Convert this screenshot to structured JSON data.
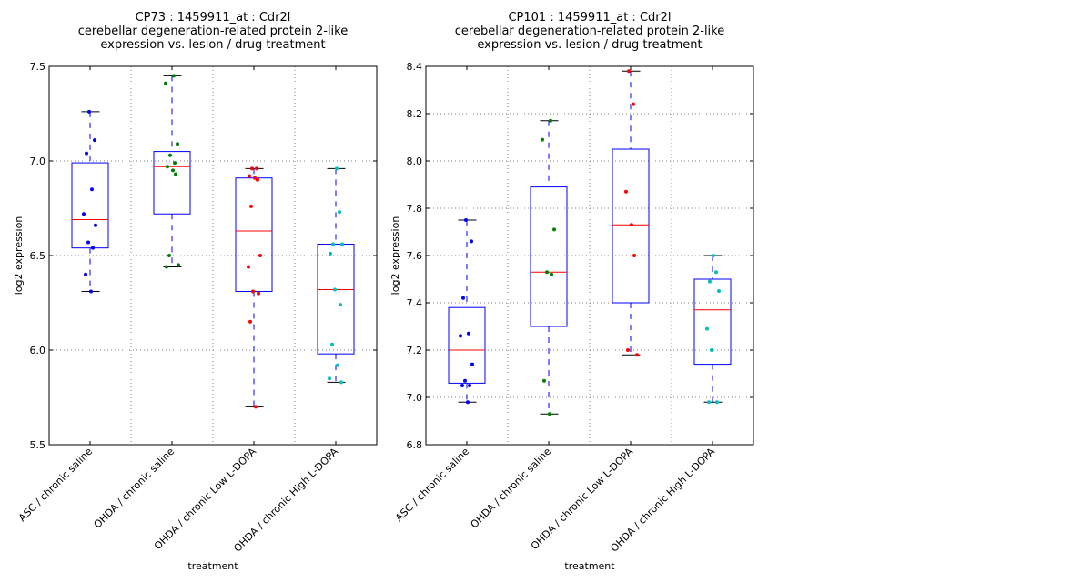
{
  "chart_data": [
    {
      "type": "box",
      "title_lines": [
        "CP73 : 1459911_at : Cdr2l",
        "cerebellar degeneration-related protein 2-like",
        "expression vs. lesion / drug treatment"
      ],
      "xlabel": "treatment",
      "ylabel": "log2 expression",
      "ylim": [
        5.5,
        7.5
      ],
      "yticks": [
        5.5,
        6.0,
        6.5,
        7.0,
        7.5
      ],
      "ytick_labels": [
        "5.5",
        "6.0",
        "6.5",
        "7.0",
        "7.5"
      ],
      "grid": true,
      "categories": [
        "ASC / chronic saline",
        "OHDA / chronic saline",
        "OHDA / chronic Low L-DOPA",
        "OHDA / chronic High L-DOPA"
      ],
      "series": [
        {
          "name": "ASC / chronic saline",
          "color": "#0000ff",
          "whisker_low": 6.31,
          "q1": 6.54,
          "median": 6.69,
          "q3": 6.99,
          "whisker_high": 7.26,
          "points": [
            7.26,
            7.11,
            7.04,
            6.85,
            6.72,
            6.66,
            6.57,
            6.54,
            6.4,
            6.31
          ]
        },
        {
          "name": "OHDA / chronic saline",
          "color": "#008000",
          "whisker_low": 6.44,
          "q1": 6.72,
          "median": 6.97,
          "q3": 7.05,
          "whisker_high": 7.45,
          "points": [
            7.45,
            7.41,
            7.09,
            7.03,
            6.99,
            6.97,
            6.95,
            6.93,
            6.5,
            6.45,
            6.44
          ]
        },
        {
          "name": "OHDA / chronic Low L-DOPA",
          "color": "#ff0000",
          "whisker_low": 5.7,
          "q1": 6.31,
          "median": 6.63,
          "q3": 6.91,
          "whisker_high": 6.96,
          "points": [
            6.96,
            6.96,
            6.92,
            6.91,
            6.9,
            6.76,
            6.5,
            6.44,
            6.31,
            6.3,
            6.15,
            5.7
          ]
        },
        {
          "name": "OHDA / chronic High L-DOPA",
          "color": "#00bfbf",
          "whisker_low": 5.83,
          "q1": 5.98,
          "median": 6.32,
          "q3": 6.56,
          "whisker_high": 6.96,
          "points": [
            6.96,
            6.73,
            6.56,
            6.56,
            6.51,
            6.32,
            6.24,
            6.03,
            5.92,
            5.85,
            5.83
          ]
        }
      ]
    },
    {
      "type": "box",
      "title_lines": [
        "CP101 : 1459911_at : Cdr2l",
        "cerebellar degeneration-related protein 2-like",
        "expression vs. lesion / drug treatment"
      ],
      "xlabel": "treatment",
      "ylabel": "log2 expression",
      "ylim": [
        6.8,
        8.4
      ],
      "yticks": [
        6.8,
        7.0,
        7.2,
        7.4,
        7.6,
        7.8,
        8.0,
        8.2,
        8.4
      ],
      "ytick_labels": [
        "6.8",
        "7.0",
        "7.2",
        "7.4",
        "7.6",
        "7.8",
        "8.0",
        "8.2",
        "8.4"
      ],
      "grid": true,
      "categories": [
        "ASC / chronic saline",
        "OHDA / chronic saline",
        "OHDA / chronic Low L-DOPA",
        "OHDA / chronic High L-DOPA"
      ],
      "series": [
        {
          "name": "ASC / chronic saline",
          "color": "#0000ff",
          "whisker_low": 6.98,
          "q1": 7.06,
          "median": 7.2,
          "q3": 7.38,
          "whisker_high": 7.75,
          "points": [
            7.75,
            7.66,
            7.42,
            7.27,
            7.26,
            7.14,
            7.07,
            7.05,
            7.05,
            6.98
          ]
        },
        {
          "name": "OHDA / chronic saline",
          "color": "#008000",
          "whisker_low": 6.93,
          "q1": 7.3,
          "median": 7.53,
          "q3": 7.89,
          "whisker_high": 8.17,
          "points": [
            8.17,
            8.09,
            7.71,
            7.53,
            7.52,
            7.07,
            6.93
          ]
        },
        {
          "name": "OHDA / chronic Low L-DOPA",
          "color": "#ff0000",
          "whisker_low": 7.18,
          "q1": 7.4,
          "median": 7.73,
          "q3": 8.05,
          "whisker_high": 8.38,
          "points": [
            8.38,
            8.24,
            7.87,
            7.73,
            7.6,
            7.2,
            7.18
          ]
        },
        {
          "name": "OHDA / chronic High L-DOPA",
          "color": "#00bfbf",
          "whisker_low": 6.98,
          "q1": 7.14,
          "median": 7.37,
          "q3": 7.5,
          "whisker_high": 7.6,
          "points": [
            7.6,
            7.53,
            7.49,
            7.45,
            7.29,
            7.2,
            6.98,
            6.98
          ]
        }
      ]
    }
  ]
}
